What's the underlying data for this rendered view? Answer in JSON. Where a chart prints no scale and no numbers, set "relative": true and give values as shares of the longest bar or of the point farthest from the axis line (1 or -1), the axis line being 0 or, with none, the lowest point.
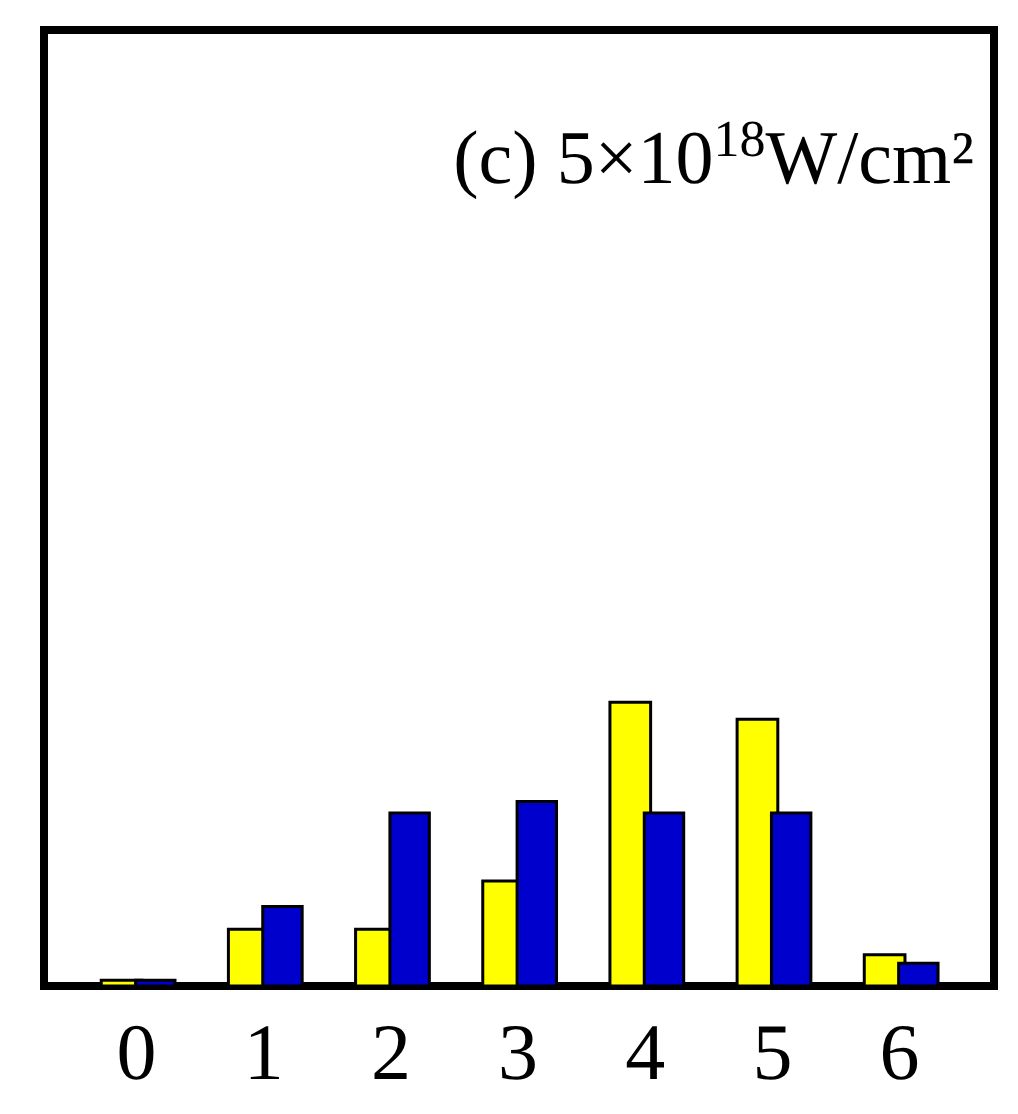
{
  "chart_data": {
    "type": "bar",
    "title": "(c) 5×10$^{18}$W/cm²",
    "relative": true,
    "categories": [
      "0",
      "1",
      "2",
      "3",
      "4",
      "5",
      "6"
    ],
    "series": [
      {
        "color": "#ffff00",
        "values": [
          0.02,
          0.2,
          0.2,
          0.37,
          1,
          0.94,
          0.11
        ]
      },
      {
        "color": "#0000cc",
        "values": [
          0.02,
          0.28,
          0.61,
          0.65,
          0.61,
          0.61,
          0.08
        ]
      }
    ]
  }
}
